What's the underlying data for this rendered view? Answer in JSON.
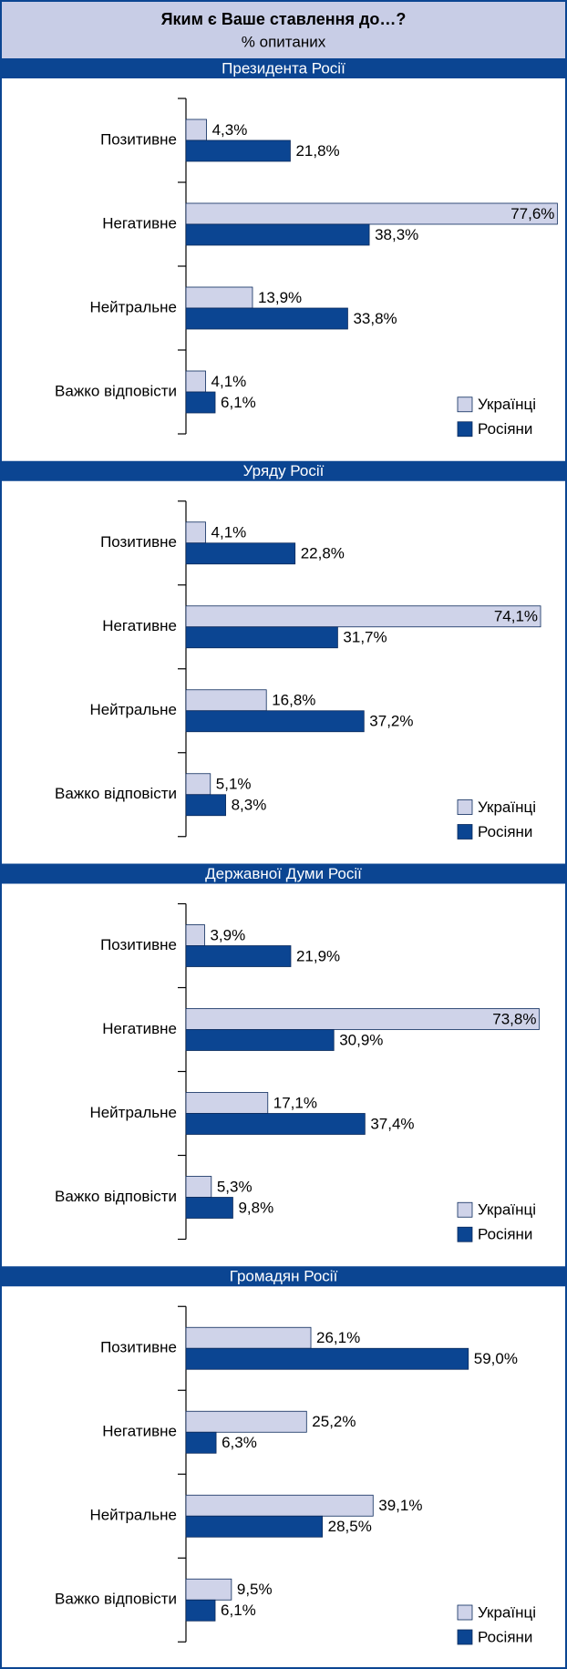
{
  "header": {
    "title": "Яким є Ваше ставлення до…?",
    "subtitle": "% опитаних"
  },
  "chart_data": [
    {
      "type": "hbar",
      "title": "Президента Росії",
      "categories": [
        "Позитивне",
        "Негативне",
        "Нейтральне",
        "Важко відповісти"
      ],
      "series": [
        {
          "name": "Українці",
          "color": "#cfd3e9",
          "values": [
            4.3,
            77.6,
            13.9,
            4.1
          ],
          "value_labels": [
            "4,3%",
            "77,6%",
            "13,9%",
            "4,1%"
          ]
        },
        {
          "name": "Росіяни",
          "color": "#0b4592",
          "values": [
            21.8,
            38.3,
            33.8,
            6.1
          ],
          "value_labels": [
            "21,8%",
            "38,3%",
            "33,8%",
            "6,1%"
          ]
        }
      ]
    },
    {
      "type": "hbar",
      "title": "Уряду Росії",
      "categories": [
        "Позитивне",
        "Негативне",
        "Нейтральне",
        "Важко відповісти"
      ],
      "series": [
        {
          "name": "Українці",
          "color": "#cfd3e9",
          "values": [
            4.1,
            74.1,
            16.8,
            5.1
          ],
          "value_labels": [
            "4,1%",
            "74,1%",
            "16,8%",
            "5,1%"
          ]
        },
        {
          "name": "Росіяни",
          "color": "#0b4592",
          "values": [
            22.8,
            31.7,
            37.2,
            8.3
          ],
          "value_labels": [
            "22,8%",
            "31,7%",
            "37,2%",
            "8,3%"
          ]
        }
      ]
    },
    {
      "type": "hbar",
      "title": "Державної Думи Росії",
      "categories": [
        "Позитивне",
        "Негативне",
        "Нейтральне",
        "Важко відповісти"
      ],
      "series": [
        {
          "name": "Українці",
          "color": "#cfd3e9",
          "values": [
            3.9,
            73.8,
            17.1,
            5.3
          ],
          "value_labels": [
            "3,9%",
            "73,8%",
            "17,1%",
            "5,3%"
          ]
        },
        {
          "name": "Росіяни",
          "color": "#0b4592",
          "values": [
            21.9,
            30.9,
            37.4,
            9.8
          ],
          "value_labels": [
            "21,9%",
            "30,9%",
            "37,4%",
            "9,8%"
          ]
        }
      ]
    },
    {
      "type": "hbar",
      "title": "Громадян Росії",
      "categories": [
        "Позитивне",
        "Негативне",
        "Нейтральне",
        "Важко відповісти"
      ],
      "series": [
        {
          "name": "Українці",
          "color": "#cfd3e9",
          "values": [
            26.1,
            25.2,
            39.1,
            9.5
          ],
          "value_labels": [
            "26,1%",
            "25,2%",
            "39,1%",
            "9,5%"
          ]
        },
        {
          "name": "Росіяни",
          "color": "#0b4592",
          "values": [
            59.0,
            6.3,
            28.5,
            6.1
          ],
          "value_labels": [
            "59,0%",
            "6,3%",
            "28,5%",
            "6,1%"
          ]
        }
      ]
    }
  ]
}
